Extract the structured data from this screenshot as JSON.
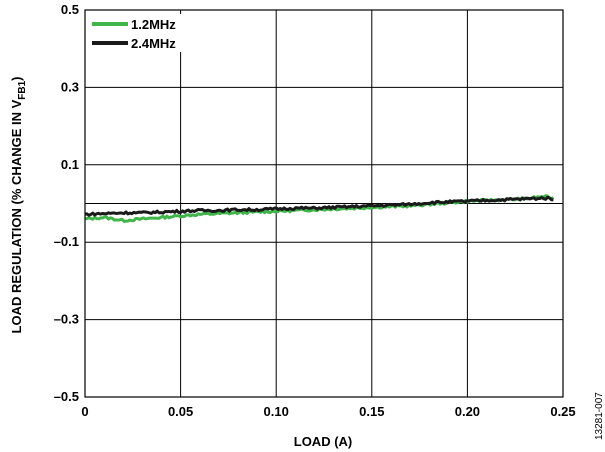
{
  "figure_id": "13281-007",
  "chart_data": {
    "type": "line",
    "title": "",
    "xlabel": "LOAD (A)",
    "ylabel": {
      "main": "LOAD REGULATION (% CHANGE IN V",
      "sub": "FB1",
      "close": ")"
    },
    "xlim": [
      0,
      0.25
    ],
    "ylim": [
      -0.5,
      0.5
    ],
    "x_ticks": [
      {
        "value": 0,
        "label": "0"
      },
      {
        "value": 0.05,
        "label": "0.05"
      },
      {
        "value": 0.1,
        "label": "0.10"
      },
      {
        "value": 0.15,
        "label": "0.15"
      },
      {
        "value": 0.2,
        "label": "0.20"
      },
      {
        "value": 0.25,
        "label": "0.25"
      }
    ],
    "y_ticks": [
      {
        "value": 0.5,
        "label": "0.5"
      },
      {
        "value": 0.3,
        "label": "0.3"
      },
      {
        "value": 0.1,
        "label": "0.1"
      },
      {
        "value": -0.1,
        "label": "–0.1"
      },
      {
        "value": -0.3,
        "label": "–0.3"
      },
      {
        "value": -0.5,
        "label": "–0.5"
      }
    ],
    "y_gridlines": [
      0.5,
      0.3,
      0.1,
      0,
      -0.1,
      -0.3,
      -0.5
    ],
    "grid": true,
    "legend": "top-left",
    "series": [
      {
        "name": "1.2MHz",
        "color": "#3fb54a",
        "x": [
          0,
          0.01,
          0.02,
          0.03,
          0.04,
          0.05,
          0.06,
          0.07,
          0.08,
          0.09,
          0.1,
          0.11,
          0.12,
          0.13,
          0.14,
          0.15,
          0.16,
          0.17,
          0.18,
          0.19,
          0.2,
          0.21,
          0.22,
          0.23,
          0.24,
          0.245
        ],
        "y": [
          -0.04,
          -0.036,
          -0.044,
          -0.04,
          -0.036,
          -0.032,
          -0.028,
          -0.026,
          -0.024,
          -0.022,
          -0.02,
          -0.018,
          -0.016,
          -0.014,
          -0.012,
          -0.01,
          -0.008,
          -0.006,
          -0.002,
          0.002,
          0.006,
          0.008,
          0.01,
          0.012,
          0.018,
          0.014
        ]
      },
      {
        "name": "2.4MHz",
        "color": "#1a1a1a",
        "x": [
          0,
          0.01,
          0.02,
          0.03,
          0.04,
          0.05,
          0.06,
          0.07,
          0.08,
          0.09,
          0.1,
          0.11,
          0.12,
          0.13,
          0.14,
          0.15,
          0.16,
          0.17,
          0.18,
          0.19,
          0.2,
          0.21,
          0.22,
          0.23,
          0.24,
          0.245
        ],
        "y": [
          -0.028,
          -0.026,
          -0.024,
          -0.024,
          -0.022,
          -0.02,
          -0.018,
          -0.018,
          -0.016,
          -0.016,
          -0.014,
          -0.012,
          -0.012,
          -0.01,
          -0.008,
          -0.006,
          -0.004,
          -0.002,
          0.002,
          0.004,
          0.006,
          0.008,
          0.01,
          0.012,
          0.014,
          0.012
        ]
      }
    ]
  }
}
